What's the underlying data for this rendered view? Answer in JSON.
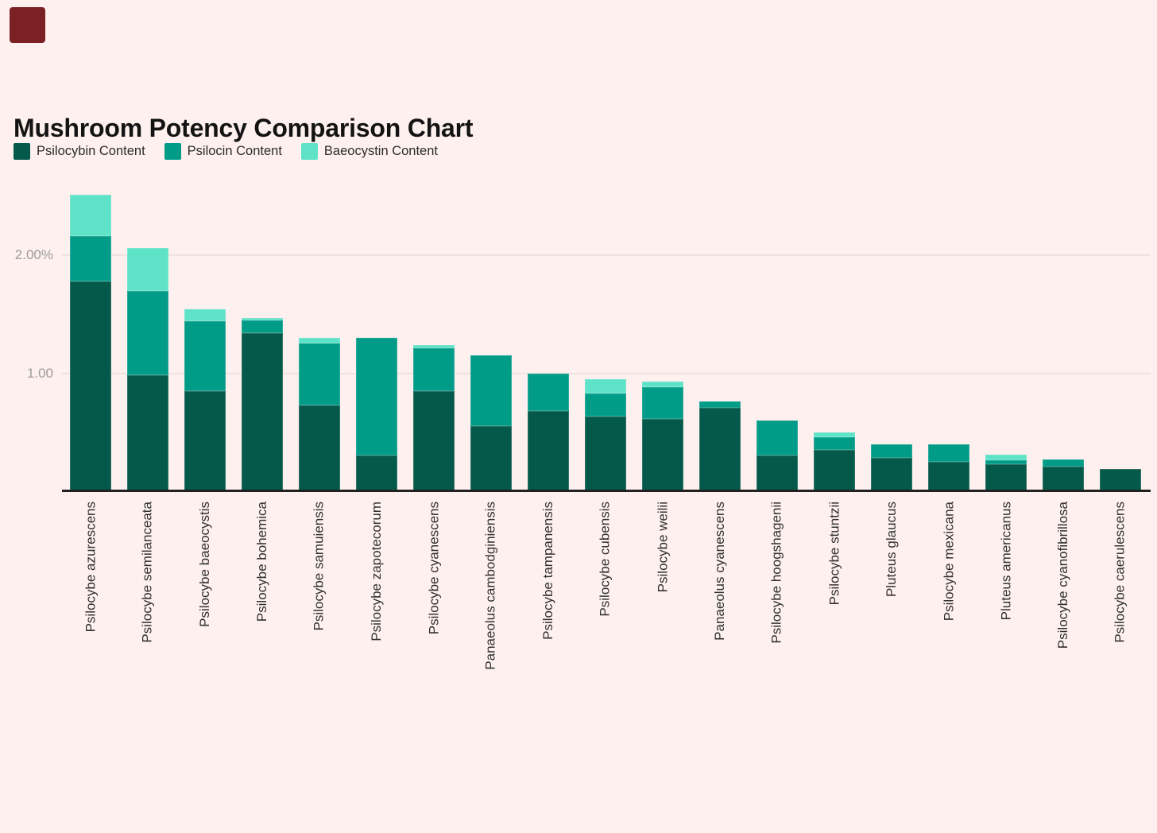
{
  "title": "Mushroom Potency Comparison Chart",
  "decor": {
    "background_color": "#fdf0ee",
    "corner_square_color": "#7b2125",
    "axis_line_color": "#212121",
    "gridline_color": "#ece3e0",
    "tick_text_color": "#9c9c9c",
    "category_text_color": "#303030"
  },
  "chart_data": {
    "type": "bar",
    "stacked": true,
    "unit": "%",
    "legend_position": "top-left",
    "grid": true,
    "ylim": [
      0,
      2.7
    ],
    "y_axis": {
      "ticks": [
        {
          "label": "2.00%",
          "value": 2.0
        },
        {
          "label": "1.00",
          "value": 1.0
        }
      ]
    },
    "categories": [
      "Psilocybe azurescens",
      "Psilocybe semilanceata",
      "Psilocybe baeocystis",
      "Psilocybe bohemica",
      "Psilocybe samuiensis",
      "Psilocybe zapotecorum",
      "Psilocybe cyanescens",
      "Panaeolus cambodginiensis",
      "Psilocybe tampanensis",
      "Psilocybe cubensis",
      "Psilocybe weilii",
      "Panaeolus cyanescens",
      "Psilocybe hoogshagenii",
      "Psilocybe stuntzii",
      "Pluteus glaucus",
      "Psilocybe mexicana",
      "Pluteus americanus",
      "Psilocybe cyanofibrillosa",
      "Psilocybe caerulescens"
    ],
    "series": [
      {
        "name": "Psilocybin Content",
        "color": "#04594a",
        "values": [
          1.78,
          0.98,
          0.85,
          1.34,
          0.73,
          0.3,
          0.85,
          0.55,
          0.68,
          0.63,
          0.61,
          0.71,
          0.3,
          0.35,
          0.28,
          0.25,
          0.23,
          0.21,
          0.19
        ]
      },
      {
        "name": "Psilocin Content",
        "color": "#019c88",
        "values": [
          0.38,
          0.72,
          0.59,
          0.11,
          0.52,
          1.0,
          0.36,
          0.6,
          0.32,
          0.2,
          0.27,
          0.05,
          0.3,
          0.11,
          0.12,
          0.15,
          0.03,
          0.06,
          0
        ]
      },
      {
        "name": "Baeocystin Content",
        "color": "#5fe3c8",
        "values": [
          0.35,
          0.36,
          0.1,
          0.02,
          0.05,
          0,
          0.03,
          0,
          0,
          0.12,
          0.05,
          0,
          0,
          0.04,
          0,
          0,
          0.05,
          0,
          0
        ]
      }
    ]
  }
}
